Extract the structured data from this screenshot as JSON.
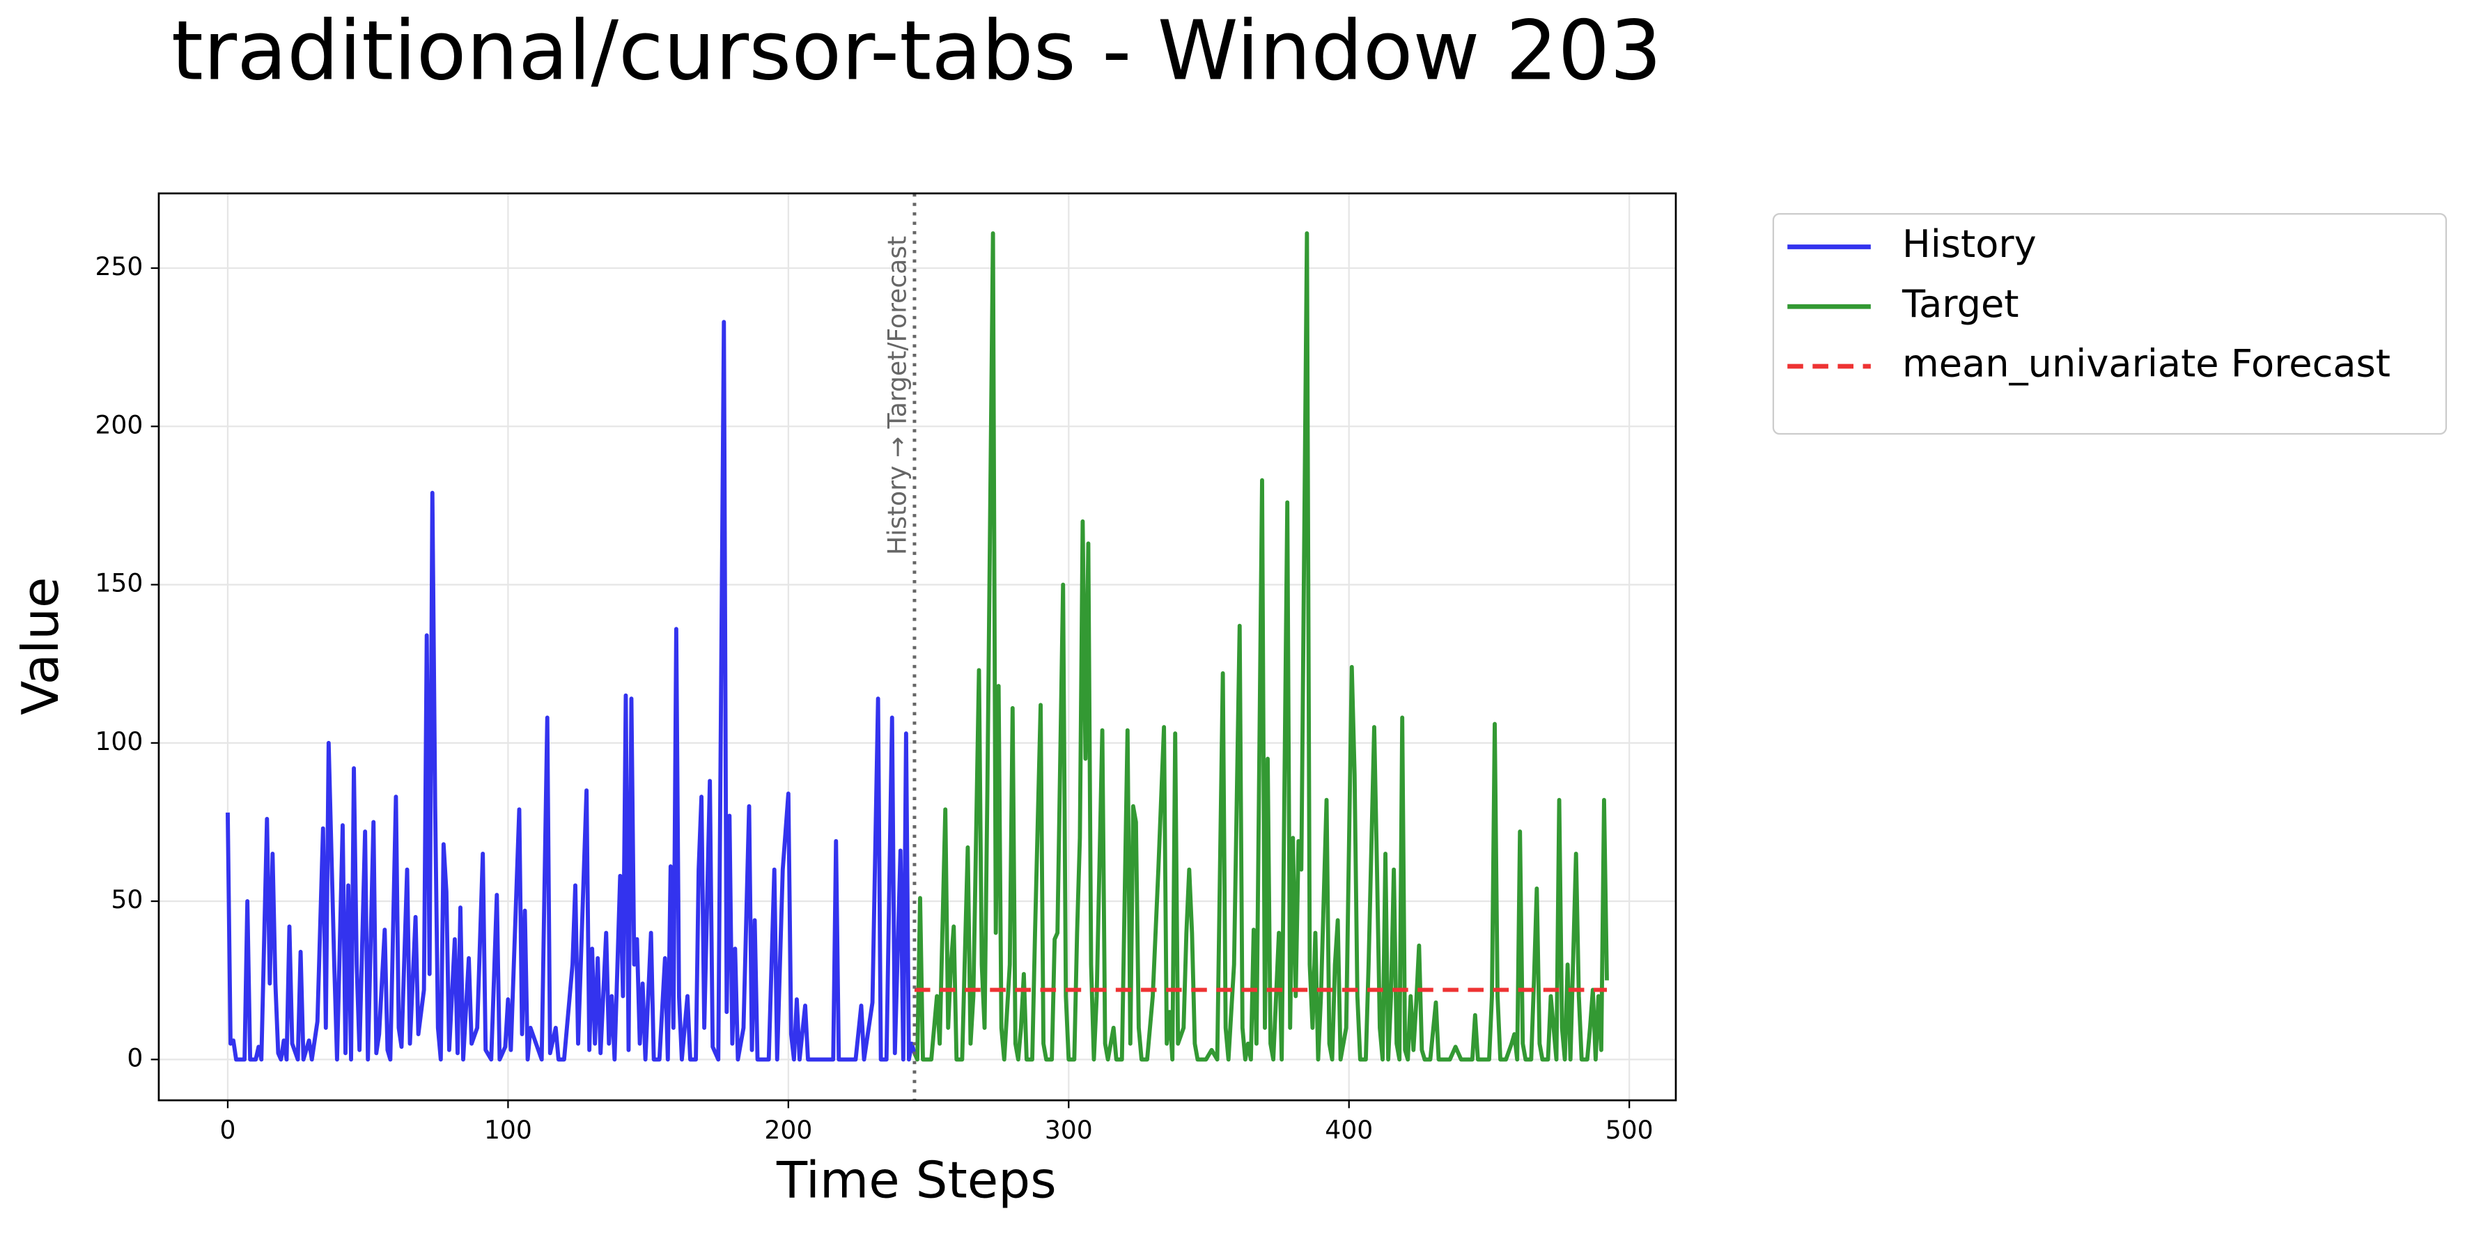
{
  "chart_data": {
    "type": "line",
    "title": "traditional/cursor-tabs - Window 203",
    "xlabel": "Time Steps",
    "ylabel": "Value",
    "xlim": [
      -24.6,
      516.6
    ],
    "ylim": [
      -12.9,
      273.6
    ],
    "xticks": [
      0,
      100,
      200,
      300,
      400,
      500
    ],
    "yticks": [
      0,
      50,
      100,
      150,
      200,
      250
    ],
    "grid": true,
    "legend": "outside upper right",
    "vline": {
      "x": 245,
      "label": "History → Target/Forecast",
      "color": "#666666",
      "style": "dotted"
    },
    "series": [
      {
        "name": "History",
        "color": "#3333ee",
        "style": "solid",
        "x": [
          0,
          1,
          2,
          3,
          6,
          7,
          8,
          10,
          11,
          12,
          14,
          15,
          16,
          17,
          18,
          19,
          20,
          21,
          22,
          23,
          25,
          26,
          27,
          29,
          30,
          32,
          34,
          35,
          36,
          38,
          39,
          41,
          42,
          43,
          44,
          45,
          46,
          47,
          49,
          50,
          52,
          53,
          54,
          56,
          57,
          58,
          60,
          61,
          62,
          64,
          65,
          67,
          68,
          70,
          71,
          72,
          73,
          74,
          75,
          76,
          77,
          78,
          79,
          81,
          82,
          83,
          84,
          86,
          87,
          89,
          91,
          92,
          94,
          96,
          97,
          99,
          100,
          101,
          104,
          105,
          106,
          107,
          108,
          110,
          112,
          114,
          115,
          117,
          118,
          120,
          123,
          124,
          125,
          128,
          129,
          130,
          131,
          132,
          133,
          135,
          136,
          137,
          138,
          140,
          141,
          142,
          143,
          144,
          145,
          146,
          147,
          148,
          149,
          151,
          152,
          154,
          156,
          157,
          158,
          159,
          160,
          161,
          162,
          164,
          165,
          167,
          168,
          169,
          170,
          172,
          173,
          175,
          177,
          178,
          179,
          180,
          181,
          182,
          184,
          186,
          187,
          188,
          189,
          191,
          193,
          195,
          196,
          198,
          200,
          201,
          202,
          203,
          204,
          206,
          207,
          210,
          216,
          217,
          218,
          224,
          226,
          227,
          230,
          232,
          233,
          235,
          237,
          238,
          240,
          241,
          242,
          243,
          244,
          245
        ],
        "values": [
          78,
          5,
          6,
          0,
          0,
          50,
          0,
          0,
          4,
          0,
          76,
          24,
          65,
          24,
          2,
          0,
          6,
          0,
          42,
          5,
          0,
          34,
          0,
          6,
          0,
          12,
          73,
          10,
          100,
          30,
          0,
          74,
          2,
          55,
          0,
          92,
          30,
          3,
          72,
          0,
          75,
          2,
          8,
          41,
          3,
          0,
          83,
          10,
          4,
          60,
          5,
          45,
          8,
          22,
          134,
          27,
          179,
          80,
          10,
          0,
          68,
          53,
          3,
          38,
          2,
          48,
          0,
          32,
          5,
          10,
          65,
          3,
          0,
          52,
          0,
          4,
          19,
          3,
          79,
          8,
          47,
          0,
          10,
          5,
          0,
          108,
          2,
          10,
          0,
          0,
          30,
          55,
          5,
          85,
          3,
          35,
          5,
          32,
          2,
          40,
          5,
          20,
          0,
          58,
          20,
          115,
          3,
          114,
          30,
          38,
          5,
          24,
          0,
          40,
          0,
          0,
          32,
          0,
          61,
          10,
          136,
          20,
          0,
          20,
          0,
          0,
          60,
          83,
          10,
          88,
          4,
          0,
          233,
          15,
          77,
          5,
          35,
          0,
          10,
          80,
          3,
          44,
          0,
          0,
          0,
          60,
          0,
          60,
          84,
          8,
          0,
          19,
          0,
          17,
          0,
          0,
          0,
          69,
          0,
          0,
          17,
          0,
          18,
          114,
          0,
          0,
          108,
          2,
          66,
          0,
          103,
          0,
          5,
          2
        ]
      },
      {
        "name": "Target",
        "color": "#339933",
        "style": "solid",
        "x": [
          245,
          246,
          247,
          248,
          251,
          253,
          254,
          256,
          257,
          258,
          259,
          260,
          262,
          264,
          265,
          266,
          268,
          269,
          270,
          271,
          273,
          274,
          275,
          276,
          277,
          279,
          280,
          281,
          282,
          283,
          284,
          285,
          287,
          288,
          290,
          291,
          292,
          294,
          295,
          296,
          298,
          299,
          300,
          302,
          303,
          304,
          305,
          306,
          307,
          308,
          309,
          310,
          312,
          313,
          314,
          316,
          317,
          319,
          321,
          322,
          323,
          324,
          325,
          326,
          328,
          330,
          332,
          334,
          335,
          336,
          337,
          338,
          339,
          341,
          342,
          343,
          344,
          345,
          346,
          349,
          351,
          353,
          355,
          356,
          357,
          359,
          361,
          362,
          363,
          364,
          365,
          366,
          367,
          369,
          370,
          371,
          372,
          373,
          375,
          376,
          378,
          379,
          380,
          381,
          382,
          383,
          385,
          386,
          387,
          388,
          389,
          390,
          392,
          393,
          394,
          395,
          396,
          397,
          399,
          401,
          402,
          403,
          404,
          406,
          407,
          409,
          410,
          411,
          412,
          413,
          414,
          415,
          416,
          417,
          418,
          419,
          420,
          421,
          422,
          423,
          424,
          425,
          426,
          427,
          429,
          431,
          432,
          434,
          436,
          438,
          440,
          444,
          445,
          446,
          448,
          450,
          451,
          452,
          453,
          454,
          456,
          458,
          459,
          460,
          461,
          462,
          463,
          465,
          466,
          467,
          468,
          469,
          471,
          472,
          474,
          475,
          476,
          477,
          478,
          479,
          481,
          482,
          483,
          485,
          486,
          487,
          488,
          489,
          490,
          491,
          492
        ],
        "values": [
          2,
          0,
          51,
          0,
          0,
          20,
          5,
          79,
          10,
          30,
          42,
          0,
          0,
          67,
          5,
          20,
          123,
          30,
          10,
          85,
          261,
          40,
          118,
          10,
          0,
          30,
          111,
          5,
          0,
          10,
          27,
          0,
          0,
          40,
          112,
          5,
          0,
          0,
          38,
          40,
          150,
          20,
          0,
          0,
          40,
          70,
          170,
          95,
          163,
          30,
          0,
          20,
          104,
          5,
          0,
          10,
          0,
          0,
          104,
          5,
          80,
          75,
          10,
          0,
          0,
          20,
          60,
          105,
          5,
          15,
          0,
          103,
          5,
          10,
          40,
          60,
          40,
          5,
          0,
          0,
          3,
          0,
          122,
          10,
          0,
          30,
          137,
          10,
          0,
          5,
          0,
          41,
          5,
          183,
          10,
          95,
          5,
          0,
          40,
          0,
          176,
          10,
          70,
          20,
          69,
          60,
          261,
          30,
          10,
          40,
          0,
          20,
          82,
          5,
          0,
          30,
          44,
          0,
          10,
          124,
          90,
          20,
          0,
          0,
          30,
          105,
          60,
          10,
          0,
          65,
          0,
          20,
          60,
          5,
          0,
          108,
          3,
          0,
          20,
          3,
          18,
          36,
          3,
          0,
          0,
          18,
          0,
          0,
          0,
          4,
          0,
          0,
          14,
          0,
          0,
          0,
          20,
          106,
          20,
          0,
          0,
          5,
          8,
          0,
          72,
          5,
          0,
          0,
          25,
          54,
          5,
          0,
          0,
          20,
          0,
          82,
          10,
          0,
          30,
          0,
          65,
          20,
          0,
          0,
          10,
          22,
          0,
          20,
          3,
          82,
          25
        ]
      },
      {
        "name": "mean_univariate Forecast",
        "color": "#ee3333",
        "style": "dashed",
        "x": [
          245,
          492
        ],
        "values": [
          22,
          22
        ]
      }
    ]
  }
}
